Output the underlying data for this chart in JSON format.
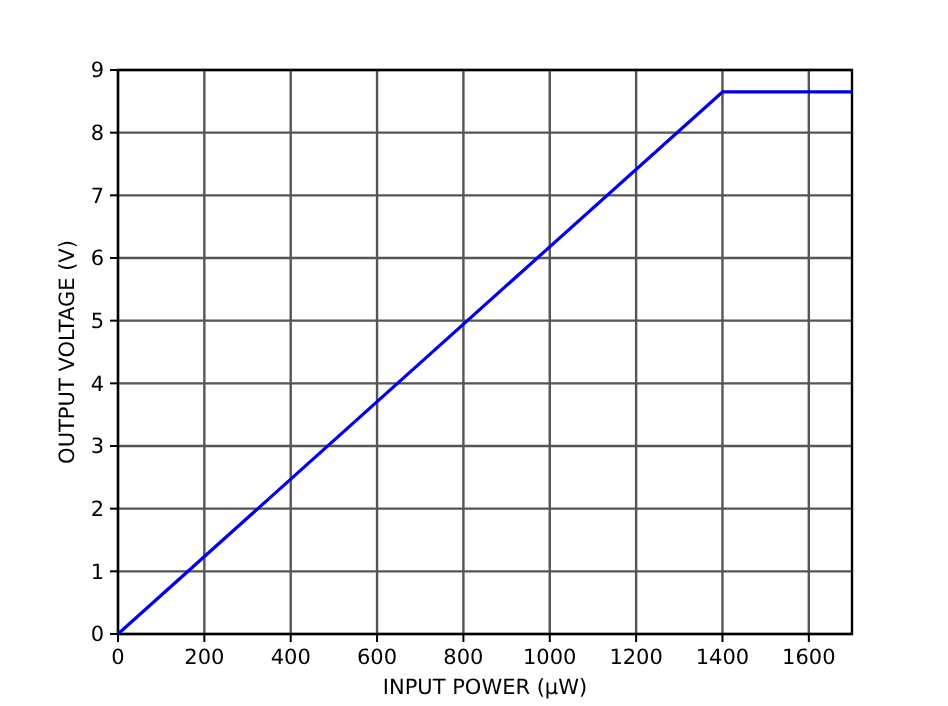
{
  "chart_data": {
    "type": "line",
    "xlabel": "INPUT POWER (µW)",
    "ylabel": "OUTPUT VOLTAGE (V)",
    "x": [
      0,
      1400,
      1700
    ],
    "series": [
      {
        "color": "#0000ee",
        "values": [
          0,
          8.65,
          8.65
        ]
      }
    ],
    "xlim": [
      0,
      1700
    ],
    "xticks": [
      0,
      200,
      400,
      600,
      800,
      1000,
      1200,
      1400,
      1600
    ],
    "ylim": [
      0,
      9
    ],
    "yticks": [
      0,
      1,
      2,
      3,
      4,
      5,
      6,
      7,
      8,
      9
    ],
    "grid": true,
    "marker": "none",
    "line_style": "solid"
  }
}
